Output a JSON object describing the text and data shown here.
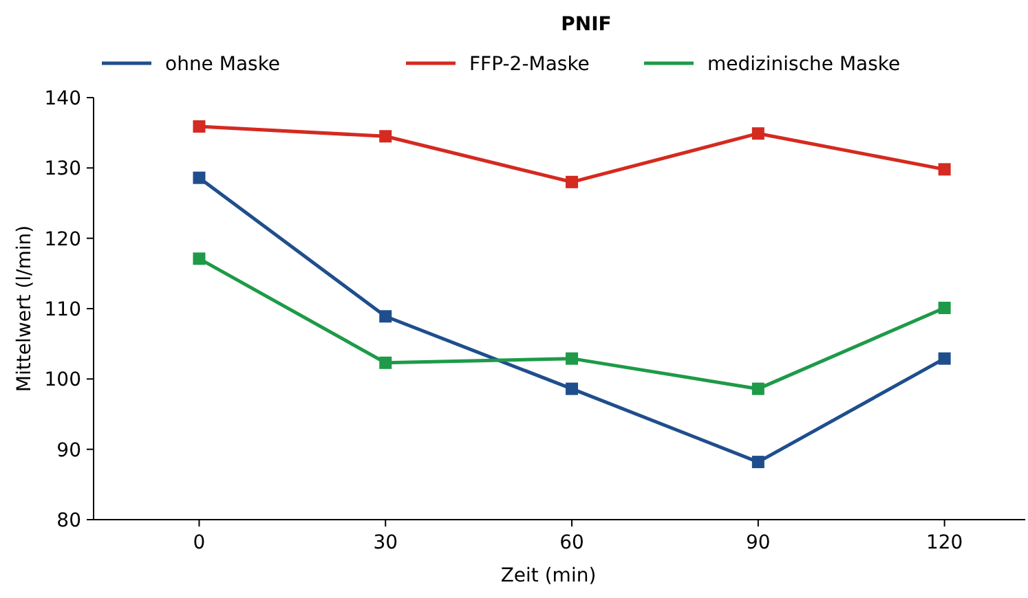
{
  "chart_data": {
    "type": "line",
    "title": "PNIF",
    "xlabel": "Zeit (min)",
    "ylabel": "Mittelwert (l/min)",
    "x": [
      0,
      30,
      60,
      90,
      120
    ],
    "xlim": [
      -17,
      133
    ],
    "xticks": [
      0,
      30,
      60,
      90,
      120
    ],
    "ylim": [
      80,
      140
    ],
    "yticks": [
      80,
      90,
      100,
      110,
      120,
      130,
      140
    ],
    "marker": "square",
    "legend": "top left",
    "grid": false,
    "series": [
      {
        "name": "ohne  Maske",
        "color": "#1f4e8c",
        "values": [
          128.6,
          108.9,
          98.6,
          88.2,
          102.9
        ]
      },
      {
        "name": "FFP-2-Maske",
        "color": "#d42a20",
        "values": [
          135.9,
          134.5,
          128,
          134.9,
          129.8
        ]
      },
      {
        "name": "medizinische Maske",
        "color": "#1e9a48",
        "values": [
          117.1,
          102.3,
          102.9,
          98.6,
          110.1
        ]
      }
    ]
  }
}
